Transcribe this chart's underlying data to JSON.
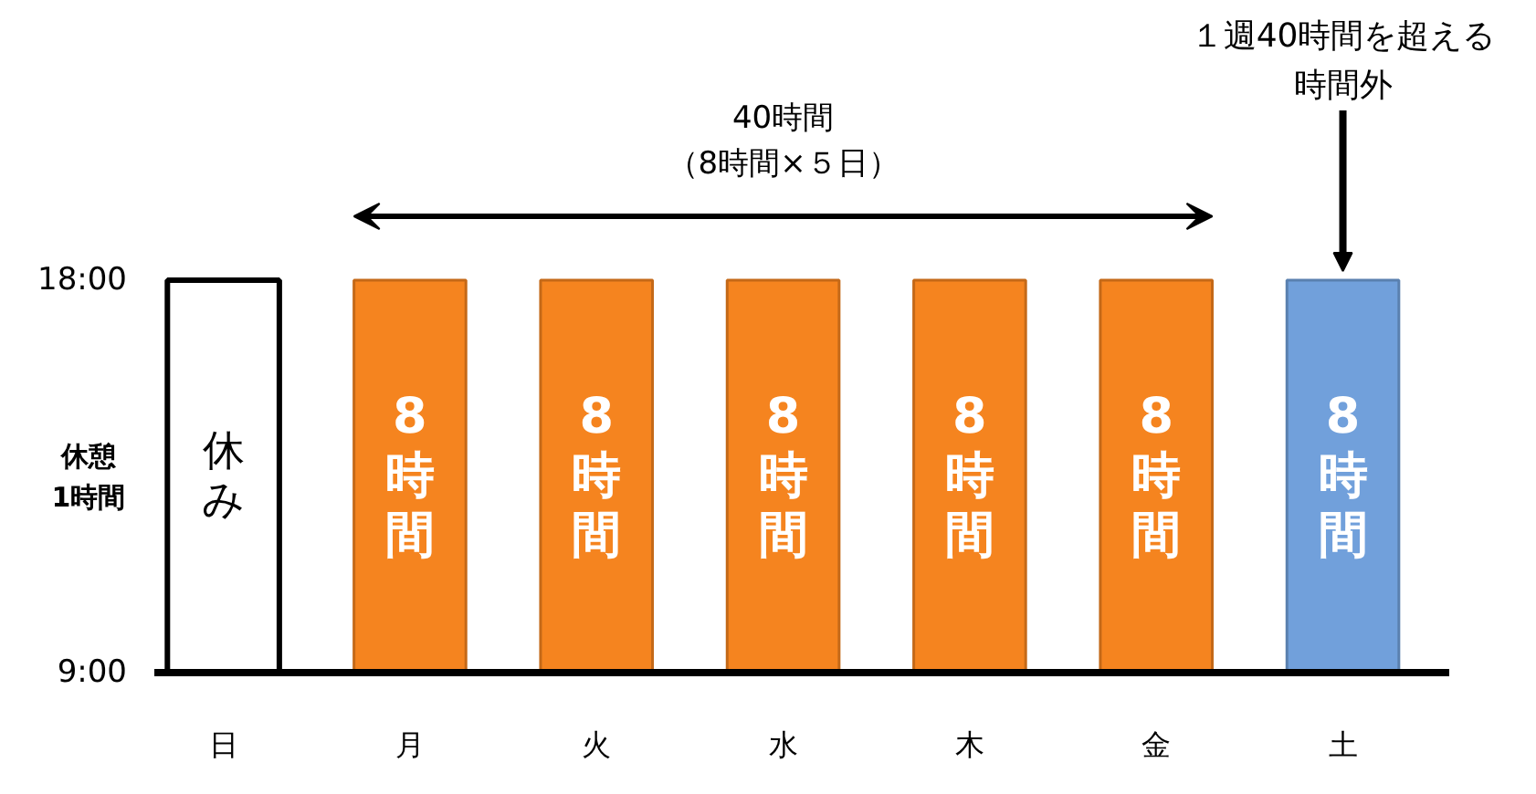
{
  "chart_data": {
    "type": "bar",
    "categories": [
      "日",
      "月",
      "火",
      "水",
      "木",
      "金",
      "土"
    ],
    "base": [
      9,
      9,
      9,
      9,
      9,
      9,
      9
    ],
    "values": [
      9,
      9,
      9,
      9,
      9,
      9,
      9
    ],
    "colors": [
      "#ffffff",
      "#f5841f",
      "#f5841f",
      "#f5841f",
      "#f5841f",
      "#f5841f",
      "#71a0db"
    ],
    "ylim": [
      9,
      18
    ],
    "yticks": [
      {
        "value": 9,
        "label": "9:00"
      },
      {
        "value": 18,
        "label": "18:00"
      }
    ],
    "ylabel": "休憩1時間",
    "annotations": [
      "休み",
      "8時間",
      "8時間",
      "8時間",
      "8時間",
      "8時間",
      "8時間",
      "40時間（8時間×５日）",
      {
        "text": "１週40時間を超える時間外",
        "x": "土",
        "y": 18
      }
    ]
  }
}
